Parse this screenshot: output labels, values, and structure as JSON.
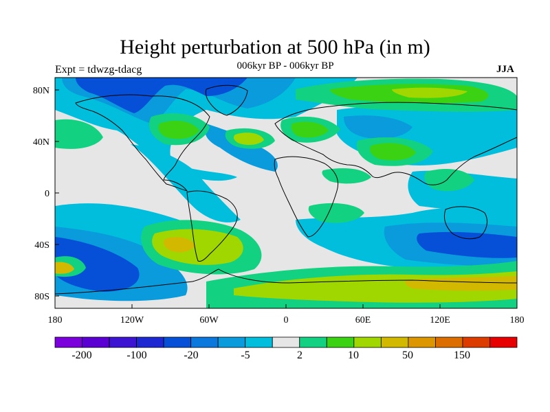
{
  "title": "Height perturbation at 500 hPa (in m)",
  "subtitle": "006kyr BP - 006kyr BP",
  "left_label": "Expt = tdwzg-tdacg",
  "right_label": "JJA",
  "axes": {
    "x_ticks": [
      "180",
      "120W",
      "60W",
      "0",
      "60E",
      "120E",
      "180"
    ],
    "y_ticks": [
      "80N",
      "40N",
      "0",
      "40S",
      "80S"
    ]
  },
  "colorbar": {
    "colors": [
      "#7a00dc",
      "#5a00d2",
      "#3c14d2",
      "#1e28d2",
      "#0550d7",
      "#0a78dc",
      "#0a9bdc",
      "#00bedc",
      "#e6e6e6",
      "#12d282",
      "#3cd214",
      "#a0d700",
      "#d2b900",
      "#dc9600",
      "#dc6e00",
      "#dc3c00",
      "#e60000"
    ],
    "labels": [
      "-200",
      "-100",
      "-20",
      "-5",
      "2",
      "10",
      "50",
      "150"
    ]
  },
  "colors": {
    "background": "#e6e6e6",
    "neg_light": "#00bedc",
    "neg_mid": "#0a9bdc",
    "neg_strong": "#0a78dc",
    "neg_deep": "#0550d7",
    "pos_light": "#12d282",
    "pos_mid": "#3cd214",
    "pos_strong": "#a0d700",
    "pos_deep": "#d2b900"
  }
}
